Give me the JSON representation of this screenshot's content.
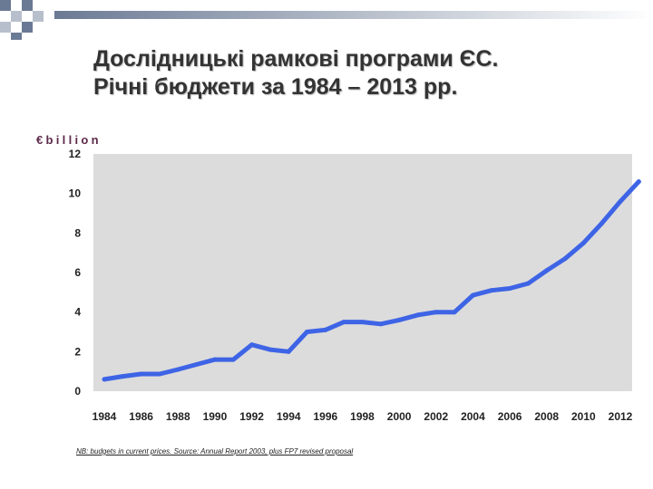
{
  "title": {
    "line1": "Дослідницькі рамкові програми ЄС.",
    "line2": "Річні бюджети за 1984 – 2013 рр."
  },
  "footnote": "NB: budgets in current prices. Source: Annual Report 2003, plus FP7 revised proposal",
  "colors": {
    "line": "#3e64e6",
    "plot_background": "#dcdcdc",
    "unit_label": "#5d2a4a",
    "title": "#333333",
    "decoration_dark": "#6b7a94",
    "decoration_light": "#b8bfcc"
  },
  "chart_data": {
    "type": "line",
    "ylabel": "€billion",
    "xlabel": "",
    "title": "",
    "ylim": [
      0,
      12
    ],
    "xlim": [
      1984,
      2013
    ],
    "grid": false,
    "legend": "none",
    "y_ticks": [
      0,
      2,
      4,
      6,
      8,
      10,
      12
    ],
    "x_ticks": [
      1984,
      1986,
      1988,
      1990,
      1992,
      1994,
      1996,
      1998,
      2000,
      2002,
      2004,
      2006,
      2008,
      2010,
      2012
    ],
    "series": [
      {
        "x": [
          1984,
          1985,
          1986,
          1987,
          1988,
          1989,
          1990,
          1991,
          1992,
          1993,
          1994,
          1995,
          1996,
          1997,
          1998,
          1999,
          2000,
          2001,
          2002,
          2003,
          2004,
          2005,
          2006,
          2007,
          2008,
          2009,
          2010,
          2011,
          2012,
          2013
        ],
        "y": [
          0.6,
          0.75,
          0.87,
          0.87,
          1.1,
          1.35,
          1.6,
          1.6,
          2.35,
          2.1,
          2.0,
          3.0,
          3.1,
          3.5,
          3.5,
          3.4,
          3.6,
          3.85,
          4.0,
          4.0,
          4.85,
          5.1,
          5.2,
          5.45,
          6.1,
          6.7,
          7.5,
          8.5,
          9.6,
          10.6
        ]
      }
    ]
  }
}
